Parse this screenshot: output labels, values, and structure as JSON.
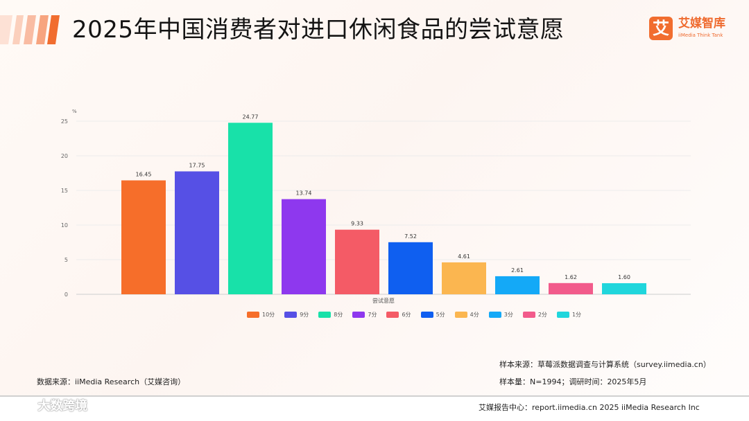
{
  "header": {
    "title": "2025年中国消费者对进口休闲食品的尝试意愿"
  },
  "brand": {
    "logo_char": "艾",
    "name": "艾媒智库",
    "subtitle": "iiMedia Think Tank",
    "accent_color": "#f16d2f"
  },
  "chart_data": {
    "type": "bar",
    "title": "",
    "xlabel": "尝试意愿",
    "ylabel": "%",
    "ylim": [
      0,
      25
    ],
    "yticks": [
      0,
      5,
      10,
      15,
      20,
      25
    ],
    "grid": true,
    "legend_position": "bottom",
    "categories": [
      "10分",
      "9分",
      "8分",
      "7分",
      "6分",
      "5分",
      "4分",
      "3分",
      "2分",
      "1分"
    ],
    "values": [
      16.45,
      17.75,
      24.77,
      13.74,
      9.33,
      7.52,
      4.61,
      2.61,
      1.62,
      1.6
    ],
    "value_labels": [
      "16.45",
      "17.75",
      "24.77",
      "13.74",
      "9.33",
      "7.52",
      "4.61",
      "2.61",
      "1.62",
      "1.60"
    ],
    "colors": [
      "#f66e2a",
      "#5650e5",
      "#18e1a9",
      "#8e38ee",
      "#f45b66",
      "#0f5ff0",
      "#fbb650",
      "#14a9f7",
      "#f25b8b",
      "#20d6dc"
    ]
  },
  "footer": {
    "source_left": "数据来源：iiMedia Research（艾媒咨询）",
    "sample_source": "样本来源：草莓派数据调查与计算系统（survey.iimedia.cn）",
    "sample_size": "样本量：N=1994；调研时间：2025年5月",
    "center_right": "艾媒报告中心：report.iimedia.cn  2025 iiMedia Research Inc",
    "watermark": "大数跨境"
  }
}
